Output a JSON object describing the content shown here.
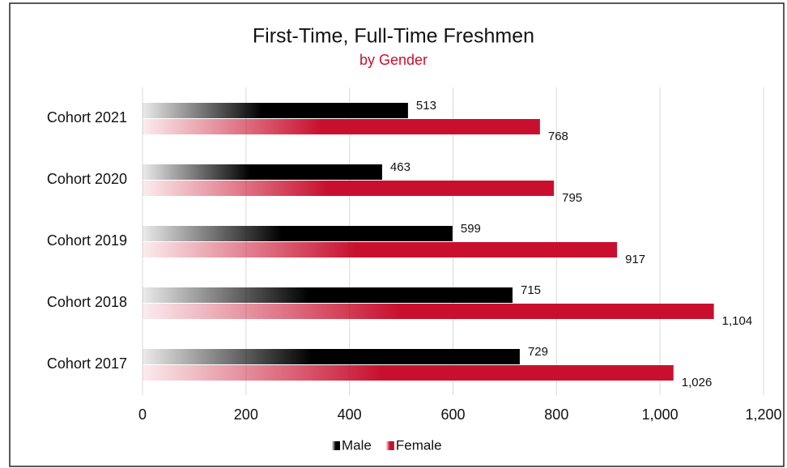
{
  "chart_data": {
    "type": "hbar",
    "title": "First-Time, Full-Time Freshmen",
    "subtitle": "by Gender",
    "categories": [
      "Cohort 2021",
      "Cohort 2020",
      "Cohort 2019",
      "Cohort 2018",
      "Cohort 2017"
    ],
    "series": [
      {
        "name": "Male",
        "color": "#000000",
        "values": [
          513,
          463,
          599,
          715,
          729
        ]
      },
      {
        "name": "Female",
        "color": "#c8102e",
        "values": [
          768,
          795,
          917,
          1104,
          1026
        ],
        "value_labels": [
          "768",
          "795",
          "917",
          "1,104",
          "1,026"
        ]
      }
    ],
    "xlim": [
      0,
      1200
    ],
    "xticks": [
      0,
      200,
      400,
      600,
      800,
      {
        "value": 1000,
        "label": "1,000"
      },
      {
        "value": 1200,
        "label": "1,200"
      }
    ],
    "grid": true,
    "legend": "bottom"
  }
}
